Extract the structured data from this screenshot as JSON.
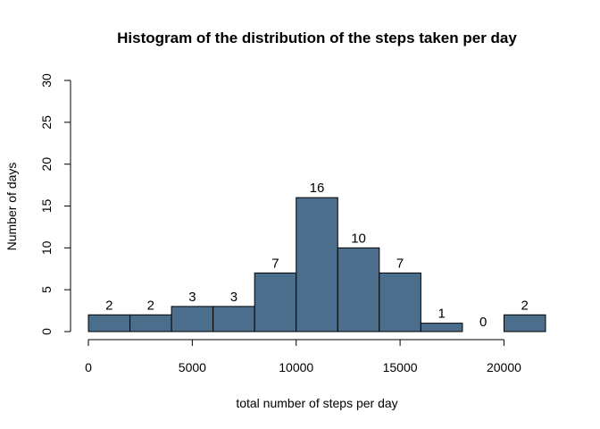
{
  "chart_data": {
    "type": "bar",
    "title": "Histogram of the distribution of the steps taken per day",
    "xlabel": "total number of steps per day",
    "ylabel": "Number of days",
    "bar_color": "#4b6e8c",
    "bar_edge_color": "#000000",
    "bin_edges": [
      0,
      2000,
      4000,
      6000,
      8000,
      10000,
      12000,
      14000,
      16000,
      18000,
      20000,
      22000
    ],
    "counts": [
      2,
      2,
      3,
      3,
      7,
      16,
      10,
      7,
      1,
      0,
      2
    ],
    "count_labels": [
      "2",
      "2",
      "3",
      "3",
      "7",
      "16",
      "10",
      "7",
      "1",
      "0",
      "2"
    ],
    "xlim": [
      0,
      22000
    ],
    "ylim": [
      0,
      30
    ],
    "x_ticks": [
      0,
      5000,
      10000,
      15000,
      20000
    ],
    "x_tick_labels": [
      "0",
      "5000",
      "10000",
      "15000",
      "20000"
    ],
    "y_ticks": [
      0,
      5,
      10,
      15,
      20,
      25,
      30
    ],
    "y_tick_labels": [
      "0",
      "5",
      "10",
      "15",
      "20",
      "25",
      "30"
    ],
    "grid": false
  }
}
